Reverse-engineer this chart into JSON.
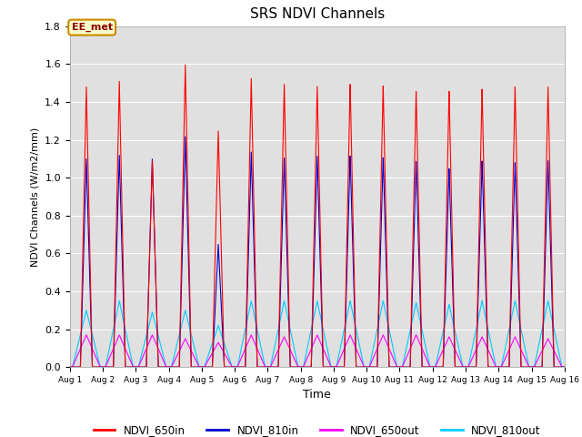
{
  "title": "SRS NDVI Channels",
  "xlabel": "Time",
  "ylabel": "NDVI Channels (W/m2/mm)",
  "ylim": [
    0,
    1.8
  ],
  "xlim_days": [
    1,
    16
  ],
  "plot_bg_color": "#e0e0e0",
  "fig_bg_color": "#ffffff",
  "annotation_text": "EE_met",
  "annotation_facecolor": "#ffffcc",
  "annotation_edgecolor": "#cc8800",
  "annotation_textcolor": "#880000",
  "colors": {
    "NDVI_650in": "#ff0000",
    "NDVI_810in": "#0000cc",
    "NDVI_650out": "#ff00ff",
    "NDVI_810out": "#00ccff"
  },
  "num_days": 15,
  "peak_650in": [
    1.48,
    1.51,
    1.09,
    1.6,
    1.25,
    1.53,
    1.5,
    1.49,
    1.5,
    1.49,
    1.46,
    1.46,
    1.47,
    1.48,
    1.48
  ],
  "peak_810in": [
    1.1,
    1.12,
    1.1,
    1.22,
    0.65,
    1.14,
    1.11,
    1.12,
    1.12,
    1.11,
    1.09,
    1.05,
    1.09,
    1.08,
    1.09
  ],
  "peak_650out": [
    0.17,
    0.17,
    0.17,
    0.15,
    0.13,
    0.17,
    0.16,
    0.17,
    0.17,
    0.17,
    0.17,
    0.16,
    0.16,
    0.16,
    0.15
  ],
  "peak_810out": [
    0.3,
    0.35,
    0.29,
    0.3,
    0.22,
    0.35,
    0.35,
    0.35,
    0.35,
    0.35,
    0.34,
    0.33,
    0.35,
    0.35,
    0.35
  ],
  "yticks": [
    0.0,
    0.2,
    0.4,
    0.6,
    0.8,
    1.0,
    1.2,
    1.4,
    1.6,
    1.8
  ],
  "xtick_labels": [
    "Aug 1",
    "Aug 2",
    "Aug 3",
    "Aug 4",
    "Aug 5",
    "Aug 6",
    "Aug 7",
    "Aug 8",
    "Aug 9",
    "Aug 10",
    "Aug 11",
    "Aug 12",
    "Aug 13",
    "Aug 14",
    "Aug 15",
    "Aug 16"
  ],
  "xtick_positions": [
    1,
    2,
    3,
    4,
    5,
    6,
    7,
    8,
    9,
    10,
    11,
    12,
    13,
    14,
    15,
    16
  ]
}
